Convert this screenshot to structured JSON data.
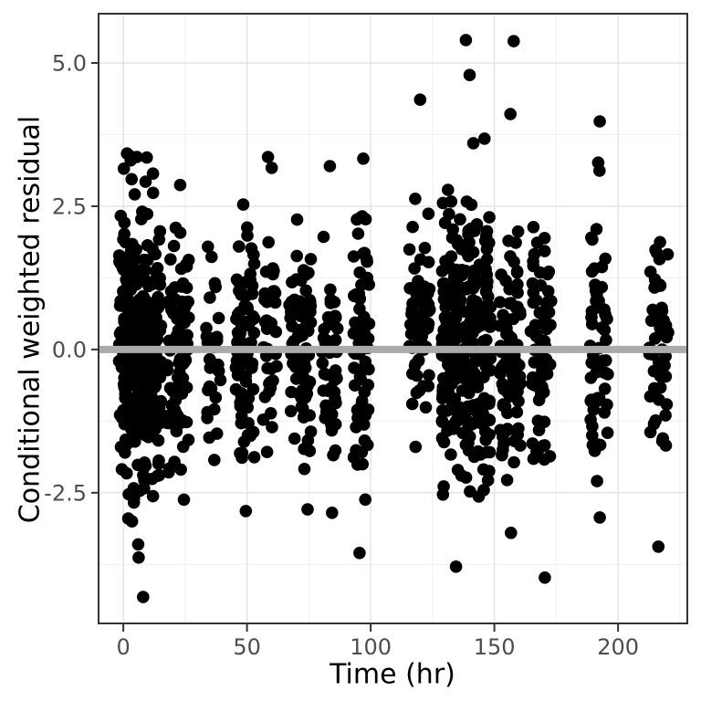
{
  "colors": {
    "background": "#ffffff",
    "panel_border": "#333333",
    "grid_major": "#e3e3e3",
    "grid_minor": "#f0f0f0",
    "tick_mark": "#333333",
    "tick_label": "#4d4d4d",
    "axis_title": "#000000",
    "point": "#000000",
    "reference_line": "#aaaaaa"
  },
  "chart_data": {
    "type": "scatter",
    "title": "",
    "xlabel": "Time (hr)",
    "ylabel": "Conditional weighted residual",
    "xlim": [
      -10,
      228
    ],
    "ylim": [
      -4.78,
      5.86
    ],
    "x_major_ticks": [
      0,
      50,
      100,
      150,
      200
    ],
    "x_tick_labels": [
      "0",
      "50",
      "100",
      "150",
      "200"
    ],
    "x_minor_gridlines": [
      25,
      75,
      125,
      175,
      225
    ],
    "y_major_ticks": [
      -2.5,
      0,
      2.5,
      5
    ],
    "y_tick_labels": [
      "-2.5",
      "0.0",
      "2.5",
      "5.0"
    ],
    "y_minor_gridlines": [
      -3.75,
      -1.25,
      1.25,
      3.75
    ],
    "grid": true,
    "legend_position": "none",
    "reference_line": {
      "y": 0,
      "stroke_width": 8
    },
    "point_style": {
      "radius": 6.8,
      "opacity": 1
    },
    "seed": 7,
    "clusters": [
      {
        "t_min": -1.8,
        "t_max": 15.3,
        "n": 340,
        "mean": 0.05,
        "sd": 1.2,
        "min": -2.72,
        "max": 3.45
      },
      {
        "t_min": 17.7,
        "t_max": 26.5,
        "n": 90,
        "mean": -0.1,
        "sd": 1.05,
        "min": -2.62,
        "max": 2.42
      },
      {
        "t_min": 33.5,
        "t_max": 39.5,
        "n": 30,
        "mean": -0.05,
        "sd": 1.0,
        "min": -2.05,
        "max": 1.85
      },
      {
        "t_min": 45.5,
        "t_max": 53.0,
        "n": 85,
        "mean": 0.0,
        "sd": 1.0,
        "min": -2.25,
        "max": 2.3
      },
      {
        "t_min": 56.5,
        "t_max": 62.5,
        "n": 38,
        "mean": 0.05,
        "sd": 1.0,
        "min": -2.2,
        "max": 2.42
      },
      {
        "t_min": 67.0,
        "t_max": 76.0,
        "n": 80,
        "mean": -0.05,
        "sd": 1.0,
        "min": -2.55,
        "max": 2.55
      },
      {
        "t_min": 80.0,
        "t_max": 87.0,
        "n": 46,
        "mean": -0.15,
        "sd": 1.0,
        "min": -2.35,
        "max": 2.25
      },
      {
        "t_min": 93.0,
        "t_max": 99.5,
        "n": 66,
        "mean": -0.1,
        "sd": 1.05,
        "min": -2.65,
        "max": 2.4
      },
      {
        "t_min": 115.5,
        "t_max": 124.0,
        "n": 70,
        "mean": 0.15,
        "sd": 1.0,
        "min": -2.3,
        "max": 2.65
      },
      {
        "t_min": 128.5,
        "t_max": 148.5,
        "n": 285,
        "mean": 0.0,
        "sd": 1.15,
        "min": -2.67,
        "max": 3.1
      },
      {
        "t_min": 152.0,
        "t_max": 160.5,
        "n": 80,
        "mean": -0.25,
        "sd": 1.0,
        "min": -2.72,
        "max": 2.2
      },
      {
        "t_min": 164.5,
        "t_max": 173.0,
        "n": 66,
        "mean": -0.1,
        "sd": 1.0,
        "min": -2.4,
        "max": 2.38
      },
      {
        "t_min": 188.5,
        "t_max": 196.0,
        "n": 56,
        "mean": 0.0,
        "sd": 1.05,
        "min": -2.6,
        "max": 2.45
      },
      {
        "t_min": 212.5,
        "t_max": 220.5,
        "n": 50,
        "mean": 0.1,
        "sd": 0.95,
        "min": -1.78,
        "max": 2.12
      }
    ],
    "outlier_points": [
      [
        1.5,
        3.42
      ],
      [
        3,
        3.3
      ],
      [
        5.5,
        3.36
      ],
      [
        9.5,
        3.35
      ],
      [
        12,
        3.07
      ],
      [
        2,
        -2.95
      ],
      [
        3.5,
        -3.0
      ],
      [
        6,
        -3.4
      ],
      [
        6.2,
        -3.63
      ],
      [
        8,
        -4.32
      ],
      [
        12,
        -2.56
      ],
      [
        23,
        2.87
      ],
      [
        24.5,
        -2.62
      ],
      [
        48.5,
        2.53
      ],
      [
        49.5,
        -2.82
      ],
      [
        58.5,
        3.36
      ],
      [
        60,
        3.17
      ],
      [
        74.5,
        -2.79
      ],
      [
        83.5,
        3.2
      ],
      [
        84.4,
        -2.85
      ],
      [
        97,
        3.33
      ],
      [
        95.5,
        -3.55
      ],
      [
        120,
        4.36
      ],
      [
        118,
        2.63
      ],
      [
        138.5,
        5.4
      ],
      [
        140,
        4.79
      ],
      [
        146,
        3.68
      ],
      [
        141.5,
        3.6
      ],
      [
        134.5,
        -3.79
      ],
      [
        157.8,
        5.38
      ],
      [
        156.5,
        4.11
      ],
      [
        156.7,
        -3.2
      ],
      [
        170.4,
        -3.98
      ],
      [
        192.6,
        3.98
      ],
      [
        192,
        3.26
      ],
      [
        192.5,
        3.12
      ],
      [
        192.6,
        -2.93
      ],
      [
        216.3,
        -3.44
      ]
    ]
  }
}
